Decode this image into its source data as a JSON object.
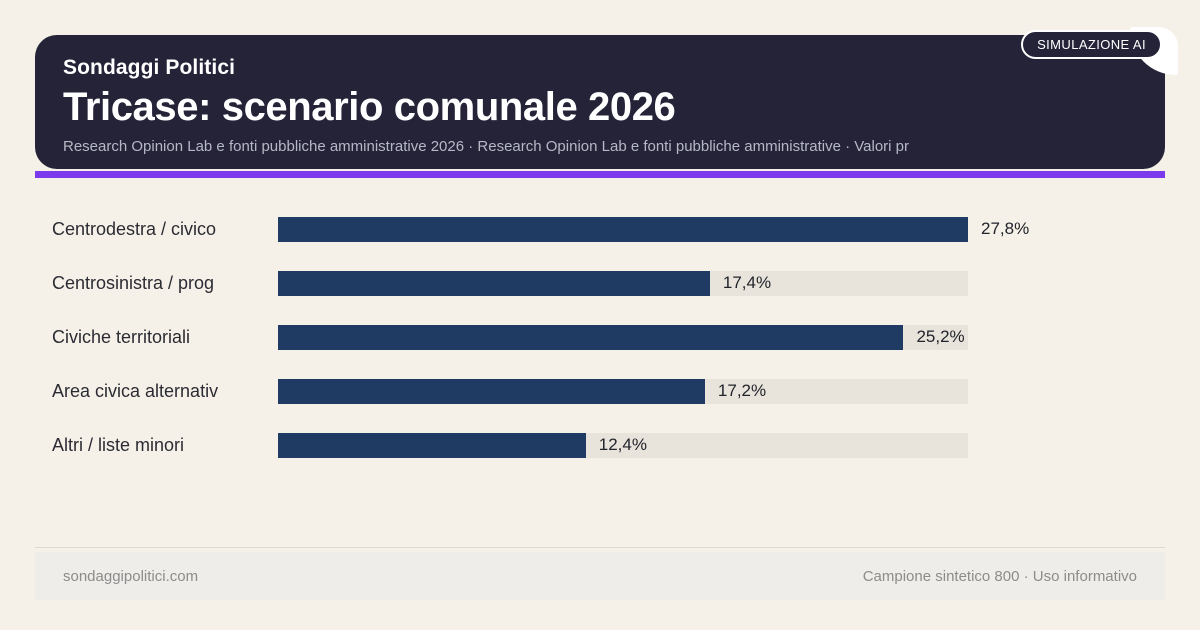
{
  "badge": {
    "label": "SIMULAZIONE AI"
  },
  "header": {
    "kicker": "Sondaggi Politici",
    "title": "Tricase: scenario comunale 2026",
    "subtitle": "Research Opinion Lab e fonti pubbliche amministrative 2026 · Research Opinion Lab e fonti pubbliche amministrative · Valori pr"
  },
  "chart_data": {
    "type": "bar",
    "orientation": "horizontal",
    "title": "Tricase: scenario comunale 2026",
    "categories": [
      "Centrodestra / civico",
      "Centrosinistra / prog",
      "Civiche territoriali",
      "Area civica alternativ",
      "Altri / liste minori"
    ],
    "values": [
      27.8,
      17.4,
      25.2,
      17.2,
      12.4
    ],
    "value_labels": [
      "27,8%",
      "17,4%",
      "25,2%",
      "17,2%",
      "12,4%"
    ],
    "unit": "%",
    "xlim": [
      0,
      27.8
    ],
    "grid": false,
    "legend": false,
    "bar_color": "#1f3a63",
    "track_color": "#e8e4db"
  },
  "footer": {
    "left": "sondaggipolitici.com",
    "right": "Campione sintetico 800 · Uso informativo"
  },
  "colors": {
    "page_background": "#f6f1e8",
    "header_background": "#252338",
    "accent_purple": "#7c3aed",
    "bar_fill": "#1f3a63",
    "bar_track": "#e8e4db",
    "label_text": "#2b2b33",
    "value_text": "#22242c",
    "subtitle_text": "#b6b8c5",
    "footer_background": "#eeedea",
    "footer_text": "#8c8c8c"
  }
}
